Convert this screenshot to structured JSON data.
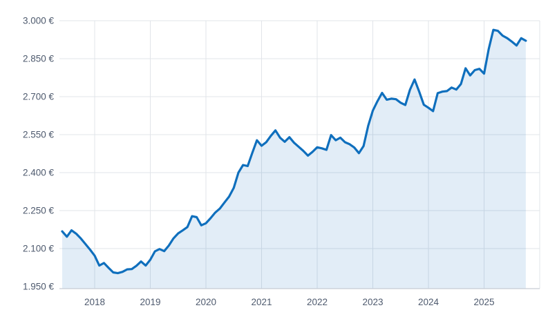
{
  "chart_data": {
    "type": "area",
    "title": "",
    "unit": "EUR",
    "number_format": "de-DE (dot as thousands separator, trailing € sign)",
    "legend": "none",
    "grid": "on",
    "y_axis": {
      "min": 1950,
      "max": 3000,
      "step": 150,
      "tick_values": [
        3000,
        2850,
        2700,
        2550,
        2400,
        2250,
        2100,
        1950
      ],
      "tick_labels": [
        "3.000 €",
        "2.850 €",
        "2.700 €",
        "2.550 €",
        "2.400 €",
        "2.250 €",
        "2.100 €",
        "1.950 €"
      ]
    },
    "x_axis": {
      "tick_values": [
        2018,
        2019,
        2020,
        2021,
        2022,
        2023,
        2024,
        2025
      ],
      "tick_labels": [
        "2018",
        "2019",
        "2020",
        "2021",
        "2022",
        "2023",
        "2024",
        "2025"
      ]
    },
    "series": [
      {
        "name": "price-eur",
        "start_month": "2017-06",
        "frequency": "monthly",
        "values": [
          2168,
          2147,
          2172,
          2159,
          2140,
          2118,
          2096,
          2072,
          2033,
          2043,
          2024,
          2006,
          2003,
          2008,
          2018,
          2019,
          2032,
          2049,
          2033,
          2056,
          2089,
          2098,
          2090,
          2112,
          2140,
          2160,
          2172,
          2185,
          2228,
          2224,
          2192,
          2200,
          2220,
          2242,
          2258,
          2282,
          2305,
          2340,
          2400,
          2430,
          2426,
          2478,
          2528,
          2506,
          2520,
          2545,
          2567,
          2538,
          2522,
          2540,
          2518,
          2502,
          2486,
          2467,
          2482,
          2500,
          2496,
          2490,
          2548,
          2528,
          2538,
          2520,
          2512,
          2499,
          2477,
          2505,
          2585,
          2645,
          2682,
          2715,
          2688,
          2692,
          2690,
          2676,
          2667,
          2727,
          2768,
          2720,
          2668,
          2656,
          2643,
          2714,
          2720,
          2722,
          2736,
          2728,
          2750,
          2812,
          2784,
          2805,
          2810,
          2791,
          2888,
          2964,
          2960,
          2941,
          2931,
          2917,
          2902,
          2931,
          2921
        ]
      }
    ],
    "colors": {
      "line": "#0f6fbd",
      "area_fill": "rgba(15, 111, 189, 0.12)",
      "gridline": "#e1e4e9",
      "axis_line": "#c6ccd4",
      "tick_label": "#4e5a6e"
    }
  }
}
